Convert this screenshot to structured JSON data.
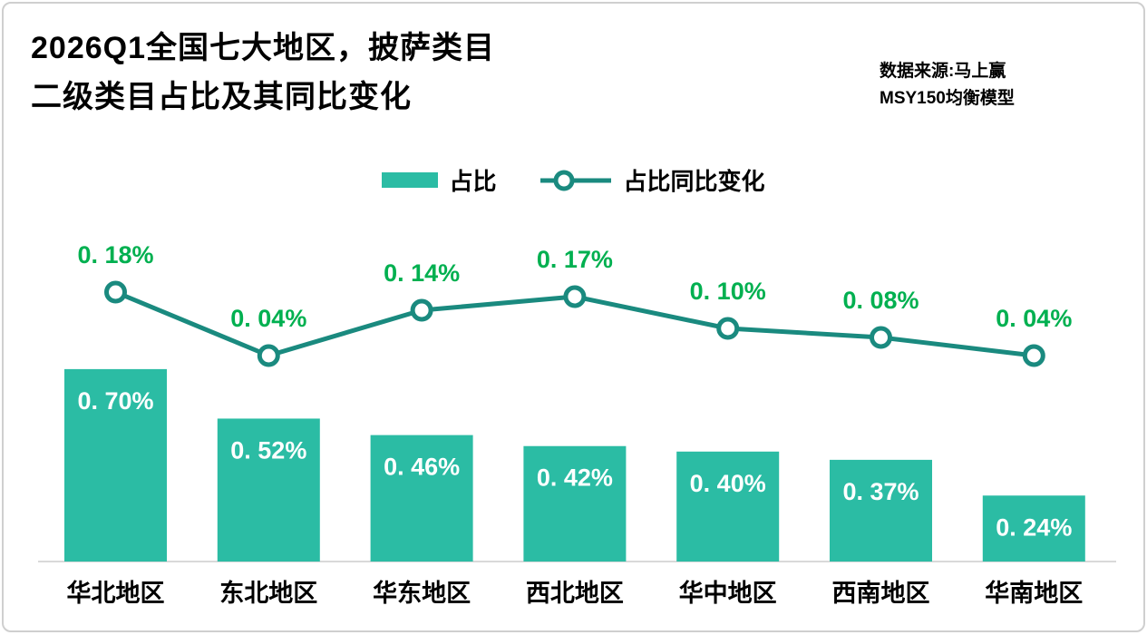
{
  "page": {
    "title_line1": "2026Q1全国七大地区，披萨类目",
    "title_line2": "二级类目占比及其同比变化",
    "source_line1": "数据来源:马上赢",
    "source_line2": "MSY150均衡模型"
  },
  "colors": {
    "bar": "#2BBCA4",
    "line": "#1A8A7F",
    "line_label": "#00B050",
    "bar_label": "#FFFFFF",
    "axis": "#D9D9D9"
  },
  "chart_data": {
    "type": "bar+line",
    "categories": [
      "华北地区",
      "东北地区",
      "华东地区",
      "西北地区",
      "华中地区",
      "西南地区",
      "华南地区"
    ],
    "series": [
      {
        "name": "占比",
        "type": "bar",
        "values": [
          0.7,
          0.52,
          0.46,
          0.42,
          0.4,
          0.37,
          0.24
        ],
        "labels": [
          "0. 70%",
          "0. 52%",
          "0. 46%",
          "0. 42%",
          "0. 40%",
          "0. 37%",
          "0. 24%"
        ]
      },
      {
        "name": "占比同比变化",
        "type": "line",
        "values": [
          0.18,
          0.04,
          0.14,
          0.17,
          0.1,
          0.08,
          0.04
        ],
        "labels": [
          "0. 18%",
          "0. 04%",
          "0. 14%",
          "0. 17%",
          "0. 10%",
          "0. 08%",
          "0. 04%"
        ]
      }
    ],
    "unit": "%",
    "ylim_bar": [
      0,
      0.75
    ],
    "legend_position": "top-center",
    "grid": false
  }
}
